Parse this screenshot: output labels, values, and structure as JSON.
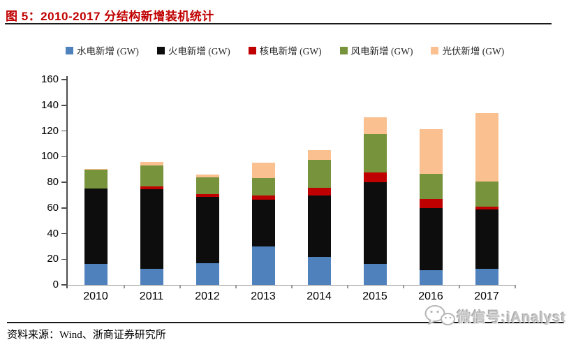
{
  "header": {
    "figure_title": "图 5：2010-2017 分结构新增装机统计"
  },
  "chart_data": {
    "type": "bar",
    "stacked": true,
    "title": "图 5：2010-2017 分结构新增装机统计",
    "categories": [
      "2010",
      "2011",
      "2012",
      "2013",
      "2014",
      "2015",
      "2016",
      "2017"
    ],
    "series": [
      {
        "name": "水电新增 (GW)",
        "color": "#4F81BD",
        "values": [
          16.6,
          12.4,
          16.9,
          30.2,
          21.9,
          16.5,
          11.3,
          12.5
        ]
      },
      {
        "name": "火电新增 (GW)",
        "color": "#0D0D0D",
        "values": [
          58.7,
          62.3,
          51.5,
          36.3,
          47.8,
          63.7,
          48.7,
          46.3
        ]
      },
      {
        "name": "核电新增 (GW)",
        "color": "#C00000",
        "values": [
          0,
          2.2,
          2.2,
          3.1,
          5.8,
          7.6,
          7.1,
          2.2
        ]
      },
      {
        "name": "风电新增 (GW)",
        "color": "#77933C",
        "values": [
          14.7,
          16.0,
          13.4,
          13.7,
          21.7,
          29.6,
          19.4,
          19.5
        ]
      },
      {
        "name": "光伏新增 (GW)",
        "color": "#FAC090",
        "values": [
          0.5,
          3.0,
          2.2,
          11.8,
          7.8,
          13.4,
          34.9,
          53.5
        ]
      }
    ],
    "xlabel": "",
    "ylabel": "",
    "ylim": [
      0,
      160
    ],
    "ytick_step": 20,
    "yticks": [
      0,
      20,
      40,
      60,
      80,
      100,
      120,
      140,
      160
    ],
    "legend_position": "top",
    "grid": false
  },
  "footer": {
    "source": "资料来源：Wind、浙商证券研究所"
  },
  "watermark": {
    "text": "微信号:iAnalyst",
    "icon": "wechat-icon"
  },
  "colors": {
    "title": "#C00000",
    "y_axis": "#4d4d4d",
    "x_axis": "#999999",
    "text": "#000000",
    "watermark": "#c4c4c4"
  }
}
